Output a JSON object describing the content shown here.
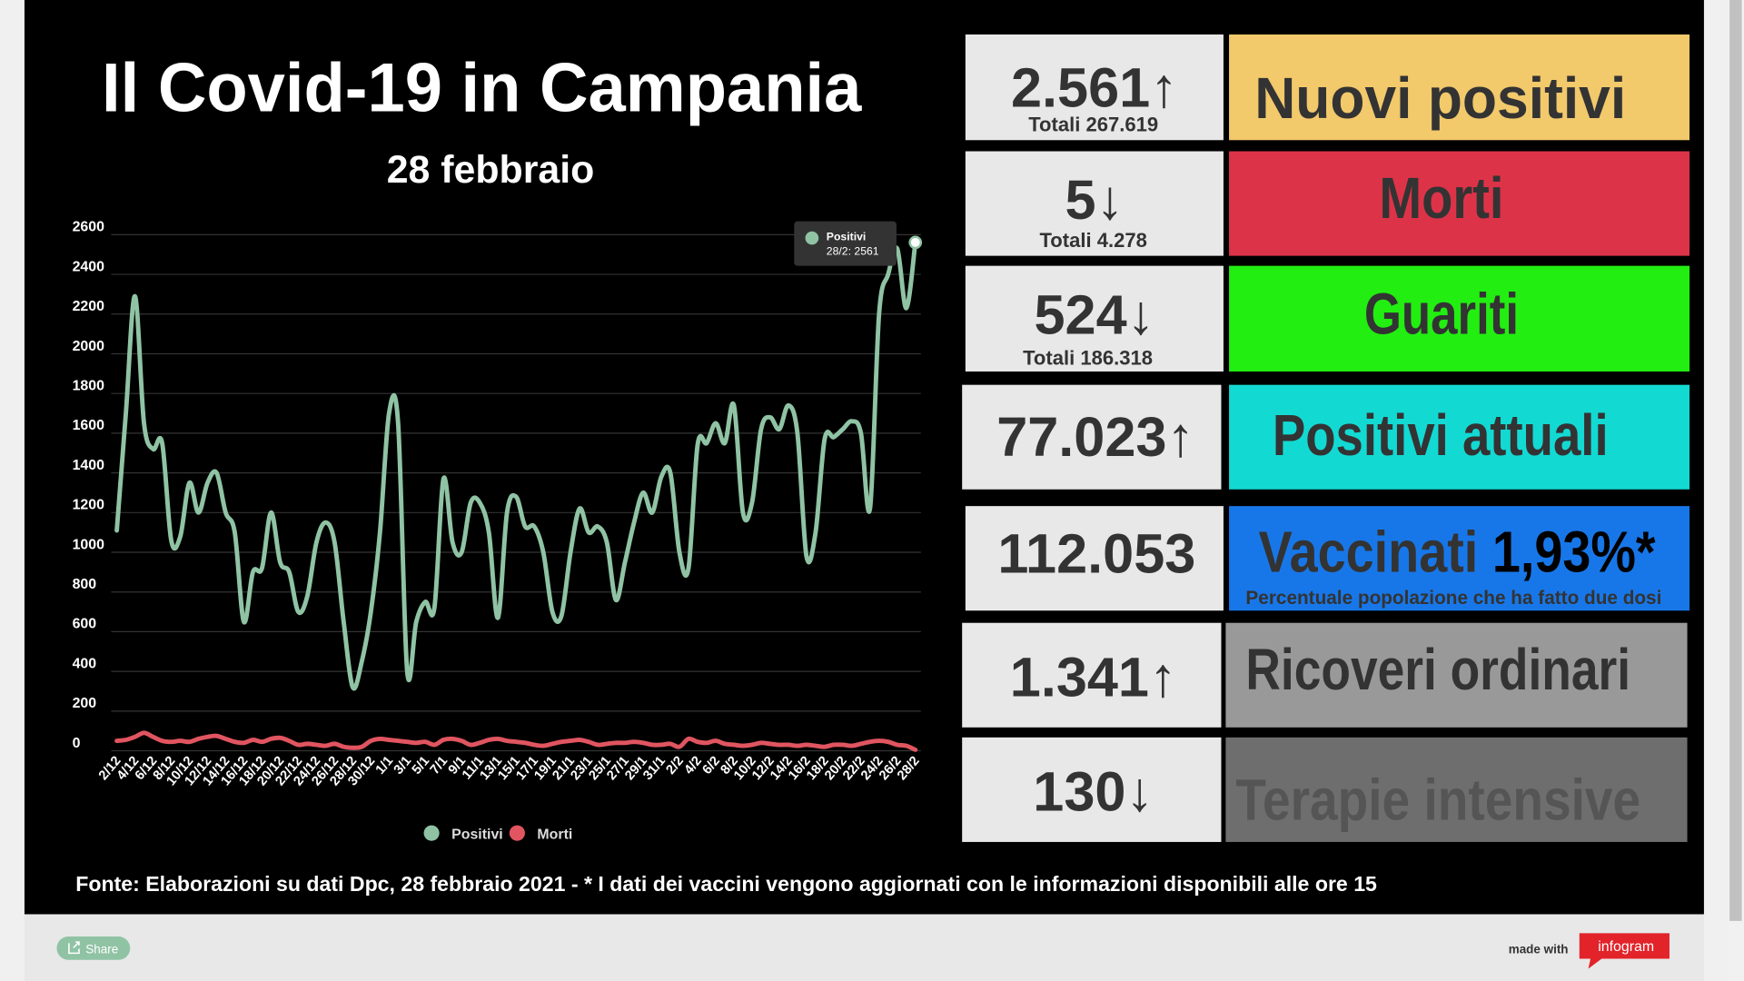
{
  "chart_data": {
    "type": "line",
    "title": "Il Covid-19 in Campania",
    "subtitle": "28 febbraio",
    "categories": [
      "2/12",
      null,
      "4/12",
      null,
      "6/12",
      null,
      "8/12",
      null,
      "10/12",
      null,
      "12/12",
      null,
      "14/12",
      null,
      "16/12",
      null,
      "18/12",
      null,
      "20/12",
      null,
      "22/12",
      null,
      "24/12",
      null,
      "26/12",
      null,
      "28/12",
      null,
      "30/12",
      null,
      "1/1",
      null,
      "3/1",
      null,
      "5/1",
      null,
      "7/1",
      null,
      "9/1",
      null,
      "11/1",
      null,
      "13/1",
      null,
      "15/1",
      null,
      "17/1",
      null,
      "19/1",
      null,
      "21/1",
      null,
      "23/1",
      null,
      "25/1",
      null,
      "27/1",
      null,
      "29/1",
      null,
      "31/1",
      null,
      "2/2",
      null,
      "4/2",
      null,
      "6/2",
      null,
      "8/2",
      null,
      "10/2",
      null,
      "12/2",
      null,
      "14/2",
      null,
      "16/2",
      null,
      "18/2",
      null,
      "20/2",
      null,
      "22/2",
      null,
      "24/2",
      null,
      "26/2",
      null,
      "28/2"
    ],
    "series": [
      {
        "name": "Positivi",
        "color": "#8fc3a4",
        "values": [
          1110,
          1700,
          2290,
          1650,
          1520,
          1550,
          1060,
          1080,
          1350,
          1200,
          1350,
          1400,
          1200,
          1100,
          650,
          900,
          920,
          1200,
          950,
          900,
          700,
          780,
          1050,
          1150,
          1050,
          650,
          320,
          450,
          700,
          1100,
          1700,
          1650,
          400,
          650,
          750,
          720,
          1370,
          1050,
          1000,
          1250,
          1250,
          1100,
          670,
          1200,
          1280,
          1130,
          1130,
          1000,
          700,
          680,
          1000,
          1220,
          1100,
          1130,
          1050,
          760,
          950,
          1150,
          1300,
          1200,
          1380,
          1400,
          1000,
          920,
          1540,
          1550,
          1650,
          1550,
          1740,
          1200,
          1250,
          1620,
          1680,
          1620,
          1740,
          1600,
          980,
          1100,
          1570,
          1580,
          1620,
          1660,
          1600,
          1220,
          2200,
          2400,
          2530,
          2230,
          2561
        ]
      },
      {
        "name": "Morti",
        "color": "#e05560",
        "values": [
          50,
          55,
          70,
          90,
          70,
          50,
          45,
          50,
          45,
          60,
          70,
          75,
          60,
          45,
          40,
          55,
          45,
          60,
          65,
          50,
          30,
          35,
          30,
          25,
          35,
          20,
          15,
          20,
          50,
          60,
          55,
          50,
          45,
          40,
          45,
          30,
          55,
          60,
          50,
          30,
          40,
          55,
          60,
          50,
          45,
          40,
          30,
          25,
          35,
          45,
          50,
          55,
          45,
          30,
          35,
          40,
          40,
          45,
          40,
          30,
          30,
          35,
          20,
          60,
          45,
          40,
          50,
          35,
          30,
          25,
          30,
          40,
          35,
          30,
          30,
          25,
          30,
          25,
          20,
          30,
          30,
          25,
          35,
          45,
          50,
          45,
          30,
          25,
          5
        ]
      }
    ],
    "ylim": [
      0,
      2600
    ],
    "yticks": [
      0,
      200,
      400,
      600,
      800,
      1000,
      1200,
      1400,
      1600,
      1800,
      2000,
      2200,
      2400,
      2600
    ],
    "grid": true,
    "legend": "bottom",
    "tooltip": {
      "title": "Positivi",
      "text": "28/2: 2561"
    }
  },
  "panels": [
    {
      "value": "2.561↑",
      "total": "Totali 267.619",
      "label": "Nuovi positivi",
      "color": "#f2c96b"
    },
    {
      "value": "5↓",
      "total": "Totali 4.278",
      "label": "Morti",
      "color": "#dd3348"
    },
    {
      "value": "524↓",
      "total": "Totali 186.318",
      "label": "Guariti",
      "color": "#22ee11"
    },
    {
      "value": "77.023↑",
      "label": "Positivi attuali",
      "color": "#13d9d3"
    },
    {
      "value": "112.053",
      "label": "Vaccinati",
      "label_highlight": "1,93%*",
      "note": "Percentuale popolazione che ha fatto due dosi",
      "color": "#1877e8"
    },
    {
      "value": "1.341↑",
      "label": "Ricoveri ordinari",
      "color": "#999999"
    },
    {
      "value": "130↓",
      "label": "Terapie intensive",
      "color": "#6e6e6e"
    }
  ],
  "footer": "Fonte: Elaborazioni su dati Dpc, 28 febbraio 2021 - * I dati dei vaccini vengono aggiornati con le informazioni disponibili alle ore 15",
  "bottom_bar": {
    "share": "Share",
    "made_with": "made with",
    "brand": "infogram"
  }
}
